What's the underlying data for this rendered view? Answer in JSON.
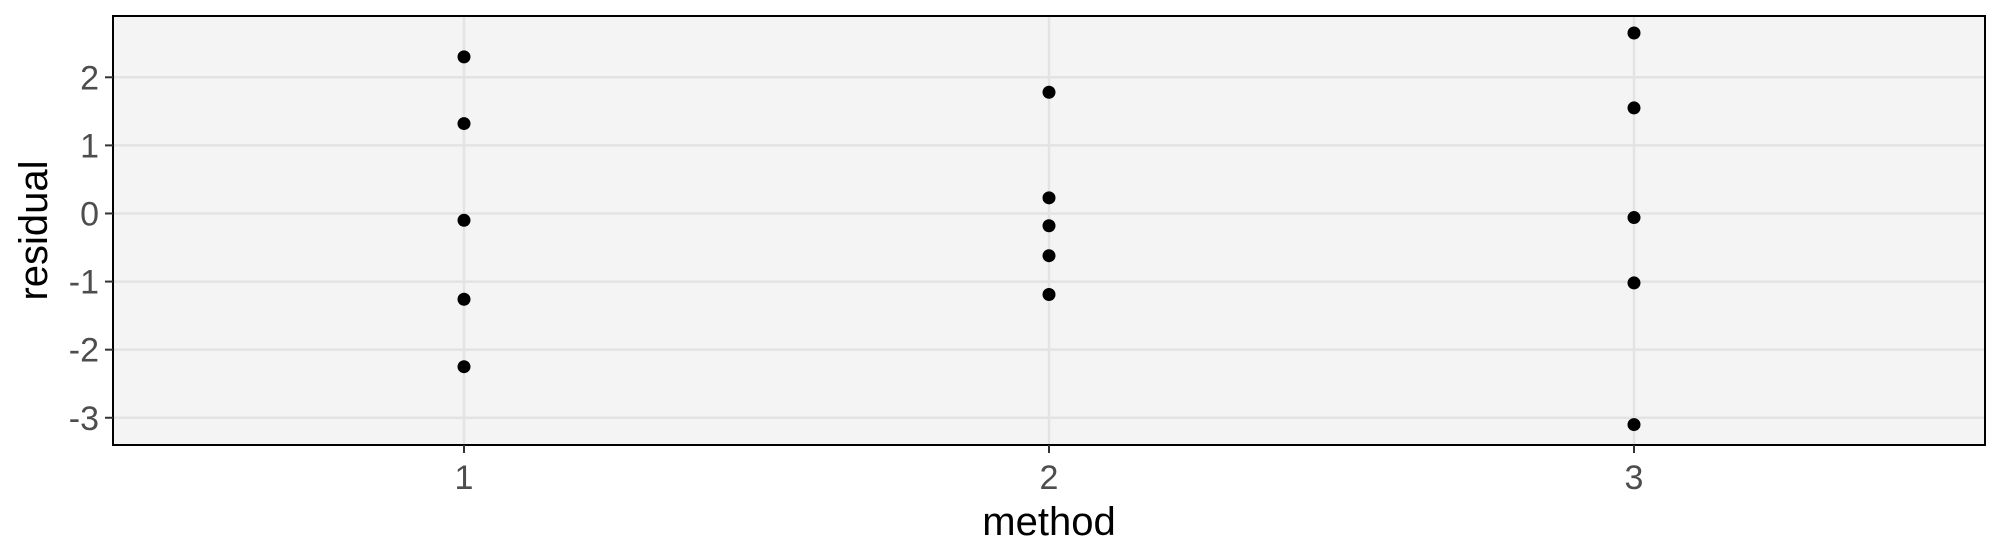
{
  "chart_data": {
    "type": "scatter",
    "title": "",
    "xlabel": "method",
    "ylabel": "residual",
    "categories": [
      "1",
      "2",
      "3"
    ],
    "yticks": [
      "-3",
      "-2",
      "-1",
      "0",
      "1",
      "2"
    ],
    "xlim": [
      0.4,
      3.6
    ],
    "ylim": [
      -3.4,
      2.9
    ],
    "grid": true,
    "legend": "none",
    "colors": {
      "panel_background": "#f4f4f4",
      "grid": "#e3e3e3",
      "point": "#000000",
      "border": "#000000"
    },
    "points": [
      {
        "x": 1,
        "y": 2.3
      },
      {
        "x": 1,
        "y": 1.32
      },
      {
        "x": 1,
        "y": -0.1
      },
      {
        "x": 1,
        "y": -1.26
      },
      {
        "x": 1,
        "y": -2.25
      },
      {
        "x": 2,
        "y": 1.78
      },
      {
        "x": 2,
        "y": 0.23
      },
      {
        "x": 2,
        "y": -0.18
      },
      {
        "x": 2,
        "y": -0.62
      },
      {
        "x": 2,
        "y": -1.19
      },
      {
        "x": 3,
        "y": 2.65
      },
      {
        "x": 3,
        "y": 1.55
      },
      {
        "x": 3,
        "y": -0.06
      },
      {
        "x": 3,
        "y": -1.02
      },
      {
        "x": 3,
        "y": -3.1
      }
    ]
  }
}
